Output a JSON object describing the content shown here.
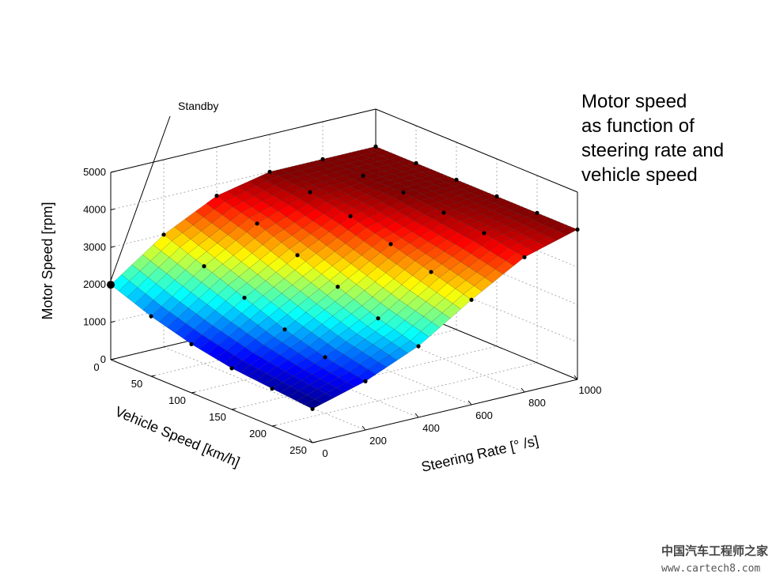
{
  "chart_data": {
    "type": "surface",
    "annotation": [
      "Motor speed",
      "as function of",
      "steering rate and",
      "vehicle speed"
    ],
    "callout": "Standby",
    "xlabel": "Vehicle Speed  [km/h]",
    "ylabel": "Steering Rate  [°  /s]",
    "zlabel": "Motor Speed  [rpm]",
    "x": [
      0,
      50,
      100,
      150,
      200,
      250
    ],
    "y": [
      0,
      200,
      400,
      600,
      800,
      1000
    ],
    "z": [
      [
        2000,
        3000,
        3700,
        4000,
        4000,
        4000
      ],
      [
        1600,
        2600,
        3400,
        3900,
        4000,
        4000
      ],
      [
        1300,
        2200,
        3000,
        3700,
        4000,
        4000
      ],
      [
        1100,
        1800,
        2600,
        3400,
        3900,
        4000
      ],
      [
        1000,
        1500,
        2200,
        3100,
        3800,
        4000
      ],
      [
        900,
        1300,
        1900,
        2800,
        3600,
        4000
      ]
    ],
    "xlim": [
      0,
      250
    ],
    "ylim": [
      0,
      1000
    ],
    "zlim": [
      0,
      5000
    ],
    "xticks": [
      0,
      50,
      100,
      150,
      200,
      250
    ],
    "yticks": [
      0,
      200,
      400,
      600,
      800,
      1000
    ],
    "zticks": [
      0,
      1000,
      2000,
      3000,
      4000,
      5000
    ],
    "grid": true,
    "colormap": "jet"
  },
  "watermark": [
    "中国汽车工程师之家",
    "www.cartech8.com"
  ]
}
